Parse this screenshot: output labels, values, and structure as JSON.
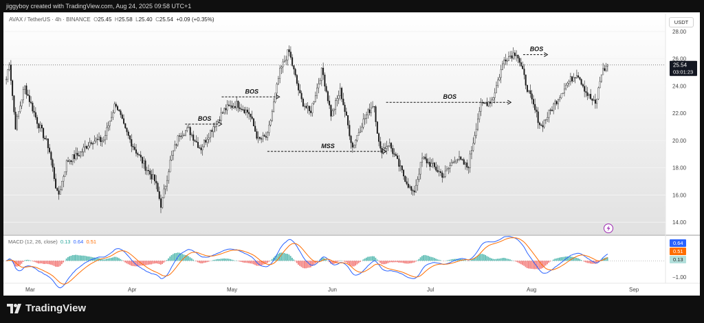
{
  "header": {
    "author_line": "jiggyboy created with TradingView.com, Aug 24, 2025 09:58 UTC+1"
  },
  "legend": {
    "symbol": "AVAX / TetherUS · 4h · BINANCE",
    "open_label": "O",
    "open": "25.45",
    "high_label": "H",
    "high": "25.58",
    "low_label": "L",
    "low": "25.40",
    "close_label": "C",
    "close": "25.54",
    "change": "+0.09 (+0.35%)"
  },
  "currency_button": "USDT",
  "price_tag": {
    "price": "25.54",
    "countdown": "03:01:23"
  },
  "macd": {
    "label": "MACD (12, 26, close)",
    "hist_value": "0.13",
    "macd_value": "0.64",
    "signal_value": "0.51",
    "axis_label": "−1.00",
    "colors": {
      "macd": "#2962ff",
      "signal": "#ff6d00",
      "hist_up": "#26a69a",
      "hist_down": "#ef5350"
    }
  },
  "brand": {
    "name": "TradingView"
  },
  "chart_data": {
    "type": "candlestick",
    "y_ticks": [
      "28.00",
      "26.00",
      "24.00",
      "22.00",
      "20.00",
      "18.00",
      "16.00",
      "14.00"
    ],
    "ylim": [
      13.2,
      29.2
    ],
    "x_ticks": [
      "Mar",
      "Apr",
      "May",
      "Jun",
      "Jul",
      "Aug",
      "Sep"
    ],
    "last_price": 25.54,
    "path_points": [
      [
        0,
        24.5
      ],
      [
        0.5,
        25.8
      ],
      [
        1.5,
        21.0
      ],
      [
        3,
        24.0
      ],
      [
        5,
        21.5
      ],
      [
        7,
        19.5
      ],
      [
        8.5,
        15.8
      ],
      [
        10,
        18.5
      ],
      [
        12,
        19.0
      ],
      [
        14,
        20.0
      ],
      [
        16,
        20.0
      ],
      [
        18,
        22.8
      ],
      [
        19.5,
        20.8
      ],
      [
        21,
        19.5
      ],
      [
        23,
        18.0
      ],
      [
        24.5,
        17.0
      ],
      [
        25.5,
        15.2
      ],
      [
        27,
        18.5
      ],
      [
        28.5,
        20.5
      ],
      [
        30,
        20.8
      ],
      [
        32,
        19.4
      ],
      [
        34,
        21.0
      ],
      [
        36,
        22.3
      ],
      [
        38,
        22.7
      ],
      [
        40,
        22.0
      ],
      [
        41.5,
        20.0
      ],
      [
        43,
        20.3
      ],
      [
        45,
        25.0
      ],
      [
        46.5,
        26.6
      ],
      [
        48.5,
        23.0
      ],
      [
        50,
        22.0
      ],
      [
        52,
        25.2
      ],
      [
        53.5,
        21.8
      ],
      [
        55,
        23.7
      ],
      [
        57,
        19.5
      ],
      [
        58.5,
        21.2
      ],
      [
        60.5,
        22.8
      ],
      [
        61.5,
        19.2
      ],
      [
        63,
        19.8
      ],
      [
        65,
        17.8
      ],
      [
        67,
        16.0
      ],
      [
        68.5,
        18.7
      ],
      [
        70,
        18.2
      ],
      [
        72,
        17.4
      ],
      [
        74,
        18.8
      ],
      [
        76,
        18.0
      ],
      [
        78,
        22.5
      ],
      [
        80,
        23.0
      ],
      [
        82,
        26.0
      ],
      [
        84,
        26.5
      ],
      [
        86,
        23.5
      ],
      [
        88,
        21.0
      ],
      [
        90,
        22.5
      ],
      [
        92,
        24.0
      ],
      [
        94,
        25.0
      ],
      [
        95.5,
        23.5
      ],
      [
        97,
        22.6
      ],
      [
        98,
        25.0
      ],
      [
        99,
        25.54
      ]
    ],
    "annotations": [
      {
        "label": "BOS",
        "from": [
          29.5,
          21.2
        ],
        "to": [
          35.5,
          21.2
        ]
      },
      {
        "label": "BOS",
        "from": [
          35.5,
          23.2
        ],
        "to": [
          45.0,
          23.2
        ]
      },
      {
        "label": "MSS",
        "from": [
          43.0,
          19.2
        ],
        "to": [
          62.5,
          19.2
        ]
      },
      {
        "label": "BOS",
        "from": [
          62.5,
          22.8
        ],
        "to": [
          83.0,
          22.8
        ]
      },
      {
        "label": "BOS",
        "from": [
          85.0,
          26.3
        ],
        "to": [
          89.0,
          26.3
        ]
      }
    ],
    "macd_ylim": [
      -1.3,
      1.5
    ]
  }
}
